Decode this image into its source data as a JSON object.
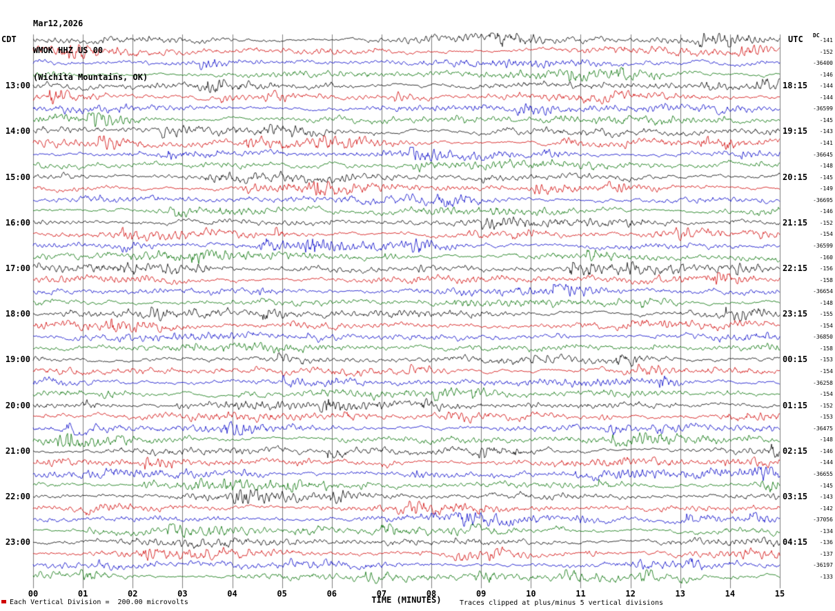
{
  "header": {
    "date": "Mar12,2026",
    "station": "WMOK HHZ US 00",
    "location": "(Wichita Mountains, OK)",
    "left_tz": "CDT",
    "right_tz": "UTC",
    "dc_label": "DC"
  },
  "footer": {
    "xlabel": "TIME (MINUTES)",
    "scale_note": "Each Vertical Division =  200.00 microvolts",
    "clip_note": "Traces clipped at plus/minus 5 vertical divisions"
  },
  "chart_data": {
    "type": "line",
    "subtype": "helicorder-seismogram",
    "title": "WMOK HHZ US 00 (Wichita Mountains, OK) Mar12,2026",
    "xlabel": "TIME (MINUTES)",
    "x_ticks": [
      "00",
      "01",
      "02",
      "03",
      "04",
      "05",
      "06",
      "07",
      "08",
      "09",
      "10",
      "11",
      "12",
      "13",
      "14",
      "15"
    ],
    "x_range_minutes": [
      0,
      15
    ],
    "minutes_per_row": 15,
    "rows_total": 48,
    "grid": true,
    "trace_colors": {
      "black": "#000000",
      "red": "#d00000",
      "blue": "#0000c8",
      "green": "#006e00"
    },
    "color_cycle": [
      "black",
      "red",
      "blue",
      "green"
    ],
    "amplitude_note": "continuous background microseism noise, ~1-2 vertical divisions peak, clipped at +/-5 divisions",
    "left_time_labels": [
      "13:00",
      "14:00",
      "15:00",
      "16:00",
      "17:00",
      "18:00",
      "19:00",
      "20:00",
      "21:00",
      "22:00",
      "23:00"
    ],
    "right_time_labels": [
      "18:15",
      "19:15",
      "20:15",
      "21:15",
      "22:15",
      "23:15",
      "00:15",
      "01:15",
      "02:15",
      "03:15",
      "04:15"
    ],
    "rows": [
      {
        "color": "black",
        "cdt": "",
        "utc": "",
        "offset": "-141"
      },
      {
        "color": "red",
        "cdt": "",
        "utc": "",
        "offset": "-152"
      },
      {
        "color": "blue",
        "cdt": "",
        "utc": "",
        "offset": "-36400"
      },
      {
        "color": "green",
        "cdt": "",
        "utc": "",
        "offset": "-146"
      },
      {
        "color": "black",
        "cdt": "13:00",
        "utc": "18:15",
        "offset": "-144"
      },
      {
        "color": "red",
        "cdt": "",
        "utc": "",
        "offset": "-144"
      },
      {
        "color": "blue",
        "cdt": "",
        "utc": "",
        "offset": "-36599"
      },
      {
        "color": "green",
        "cdt": "",
        "utc": "",
        "offset": "-145"
      },
      {
        "color": "black",
        "cdt": "14:00",
        "utc": "19:15",
        "offset": "-143"
      },
      {
        "color": "red",
        "cdt": "",
        "utc": "",
        "offset": "-141"
      },
      {
        "color": "blue",
        "cdt": "",
        "utc": "",
        "offset": "-36645"
      },
      {
        "color": "green",
        "cdt": "",
        "utc": "",
        "offset": "-148"
      },
      {
        "color": "black",
        "cdt": "15:00",
        "utc": "20:15",
        "offset": "-145"
      },
      {
        "color": "red",
        "cdt": "",
        "utc": "",
        "offset": "-149"
      },
      {
        "color": "blue",
        "cdt": "",
        "utc": "",
        "offset": "-36695"
      },
      {
        "color": "green",
        "cdt": "",
        "utc": "",
        "offset": "-146"
      },
      {
        "color": "black",
        "cdt": "16:00",
        "utc": "21:15",
        "offset": "-152"
      },
      {
        "color": "red",
        "cdt": "",
        "utc": "",
        "offset": "-154"
      },
      {
        "color": "blue",
        "cdt": "",
        "utc": "",
        "offset": "-36599"
      },
      {
        "color": "green",
        "cdt": "",
        "utc": "",
        "offset": "-160"
      },
      {
        "color": "black",
        "cdt": "17:00",
        "utc": "22:15",
        "offset": "-156"
      },
      {
        "color": "red",
        "cdt": "",
        "utc": "",
        "offset": "-158"
      },
      {
        "color": "blue",
        "cdt": "",
        "utc": "",
        "offset": "-36654"
      },
      {
        "color": "green",
        "cdt": "",
        "utc": "",
        "offset": "-148"
      },
      {
        "color": "black",
        "cdt": "18:00",
        "utc": "23:15",
        "offset": "-155"
      },
      {
        "color": "red",
        "cdt": "",
        "utc": "",
        "offset": "-154"
      },
      {
        "color": "blue",
        "cdt": "",
        "utc": "",
        "offset": "-36850"
      },
      {
        "color": "green",
        "cdt": "",
        "utc": "",
        "offset": "-158"
      },
      {
        "color": "black",
        "cdt": "19:00",
        "utc": "00:15",
        "offset": "-153"
      },
      {
        "color": "red",
        "cdt": "",
        "utc": "",
        "offset": "-154"
      },
      {
        "color": "blue",
        "cdt": "",
        "utc": "",
        "offset": "-36258"
      },
      {
        "color": "green",
        "cdt": "",
        "utc": "",
        "offset": "-154"
      },
      {
        "color": "black",
        "cdt": "20:00",
        "utc": "01:15",
        "offset": "-152"
      },
      {
        "color": "red",
        "cdt": "",
        "utc": "",
        "offset": "-153"
      },
      {
        "color": "blue",
        "cdt": "",
        "utc": "",
        "offset": "-36475"
      },
      {
        "color": "green",
        "cdt": "",
        "utc": "",
        "offset": "-148"
      },
      {
        "color": "black",
        "cdt": "21:00",
        "utc": "02:15",
        "offset": "-146"
      },
      {
        "color": "red",
        "cdt": "",
        "utc": "",
        "offset": "-144"
      },
      {
        "color": "blue",
        "cdt": "",
        "utc": "",
        "offset": "-36655"
      },
      {
        "color": "green",
        "cdt": "",
        "utc": "",
        "offset": "-145"
      },
      {
        "color": "black",
        "cdt": "22:00",
        "utc": "03:15",
        "offset": "-143"
      },
      {
        "color": "red",
        "cdt": "",
        "utc": "",
        "offset": "-142"
      },
      {
        "color": "blue",
        "cdt": "",
        "utc": "",
        "offset": "-37056"
      },
      {
        "color": "green",
        "cdt": "",
        "utc": "",
        "offset": "-134"
      },
      {
        "color": "black",
        "cdt": "23:00",
        "utc": "04:15",
        "offset": "-136"
      },
      {
        "color": "red",
        "cdt": "",
        "utc": "",
        "offset": "-137"
      },
      {
        "color": "blue",
        "cdt": "",
        "utc": "",
        "offset": "-36197"
      },
      {
        "color": "green",
        "cdt": "",
        "utc": "",
        "offset": "-133"
      }
    ]
  }
}
